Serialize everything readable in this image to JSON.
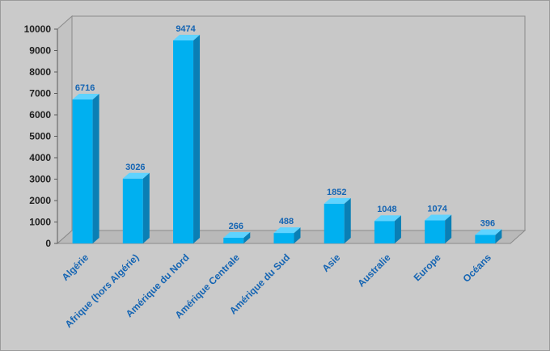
{
  "chart_data": {
    "type": "bar",
    "categories": [
      "Algérie",
      "Afrique (hors Algérie)",
      "Amérique du Nord",
      "Amérique Centrale",
      "Amérique du Sud",
      "Asie",
      "Australie",
      "Europe",
      "Océans"
    ],
    "values": [
      6716,
      3026,
      9474,
      266,
      488,
      1852,
      1048,
      1074,
      396
    ],
    "ylim": [
      0,
      10000
    ],
    "yticks": [
      "0",
      "1000",
      "2000",
      "3000",
      "4000",
      "5000",
      "6000",
      "7000",
      "8000",
      "9000",
      "10000"
    ],
    "legend": "none",
    "grid": false,
    "colors": {
      "bar_front": "#00b0f0",
      "bar_side": "#0a7fb5",
      "bar_top": "#5fd3ff",
      "label": "#1565b3",
      "wall": "#c8c8c8",
      "floor": "#b9b9b9"
    }
  }
}
